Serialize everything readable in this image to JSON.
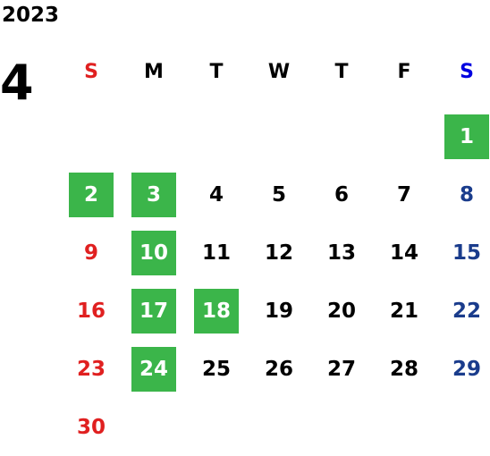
{
  "calendar": {
    "year": "2023",
    "month": "4",
    "colors": {
      "sunday": "#e02020",
      "saturday": "#1a3c8c",
      "saturday_header": "#0000e0",
      "weekday": "#000000",
      "highlight_bg": "#3bb54a",
      "highlight_text": "#ffffff"
    },
    "weekdays": [
      {
        "label": "S",
        "kind": "sunday"
      },
      {
        "label": "M",
        "kind": "weekday"
      },
      {
        "label": "T",
        "kind": "weekday"
      },
      {
        "label": "W",
        "kind": "weekday"
      },
      {
        "label": "T",
        "kind": "weekday"
      },
      {
        "label": "F",
        "kind": "weekday"
      },
      {
        "label": "S",
        "kind": "saturday"
      }
    ],
    "first_weekday_index": 6,
    "days_in_month": 30,
    "highlighted_days": [
      1,
      2,
      3,
      10,
      17,
      18,
      24
    ]
  }
}
